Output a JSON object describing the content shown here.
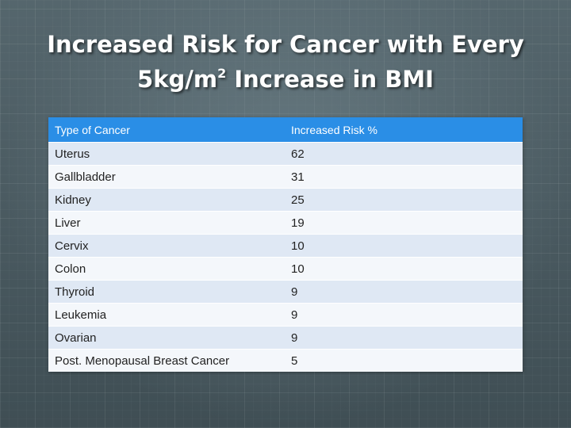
{
  "slide": {
    "title_line1": "Increased Risk for Cancer with Every",
    "title_line2_prefix": "5kg/m",
    "title_line2_sup": "2",
    "title_line2_suffix": " Increase in BMI"
  },
  "table": {
    "headers": [
      "Type of Cancer",
      "Increased Risk %"
    ],
    "header_color": "#2a8ee6",
    "rows": [
      {
        "type": "Uterus",
        "risk": "62"
      },
      {
        "type": "Gallbladder",
        "risk": "31"
      },
      {
        "type": "Kidney",
        "risk": "25"
      },
      {
        "type": "Liver",
        "risk": "19"
      },
      {
        "type": "Cervix",
        "risk": "10"
      },
      {
        "type": "Colon",
        "risk": "10"
      },
      {
        "type": "Thyroid",
        "risk": "9"
      },
      {
        "type": "Leukemia",
        "risk": "9"
      },
      {
        "type": "Ovarian",
        "risk": "9"
      },
      {
        "type": "Post. Menopausal Breast Cancer",
        "risk": "5"
      }
    ]
  }
}
